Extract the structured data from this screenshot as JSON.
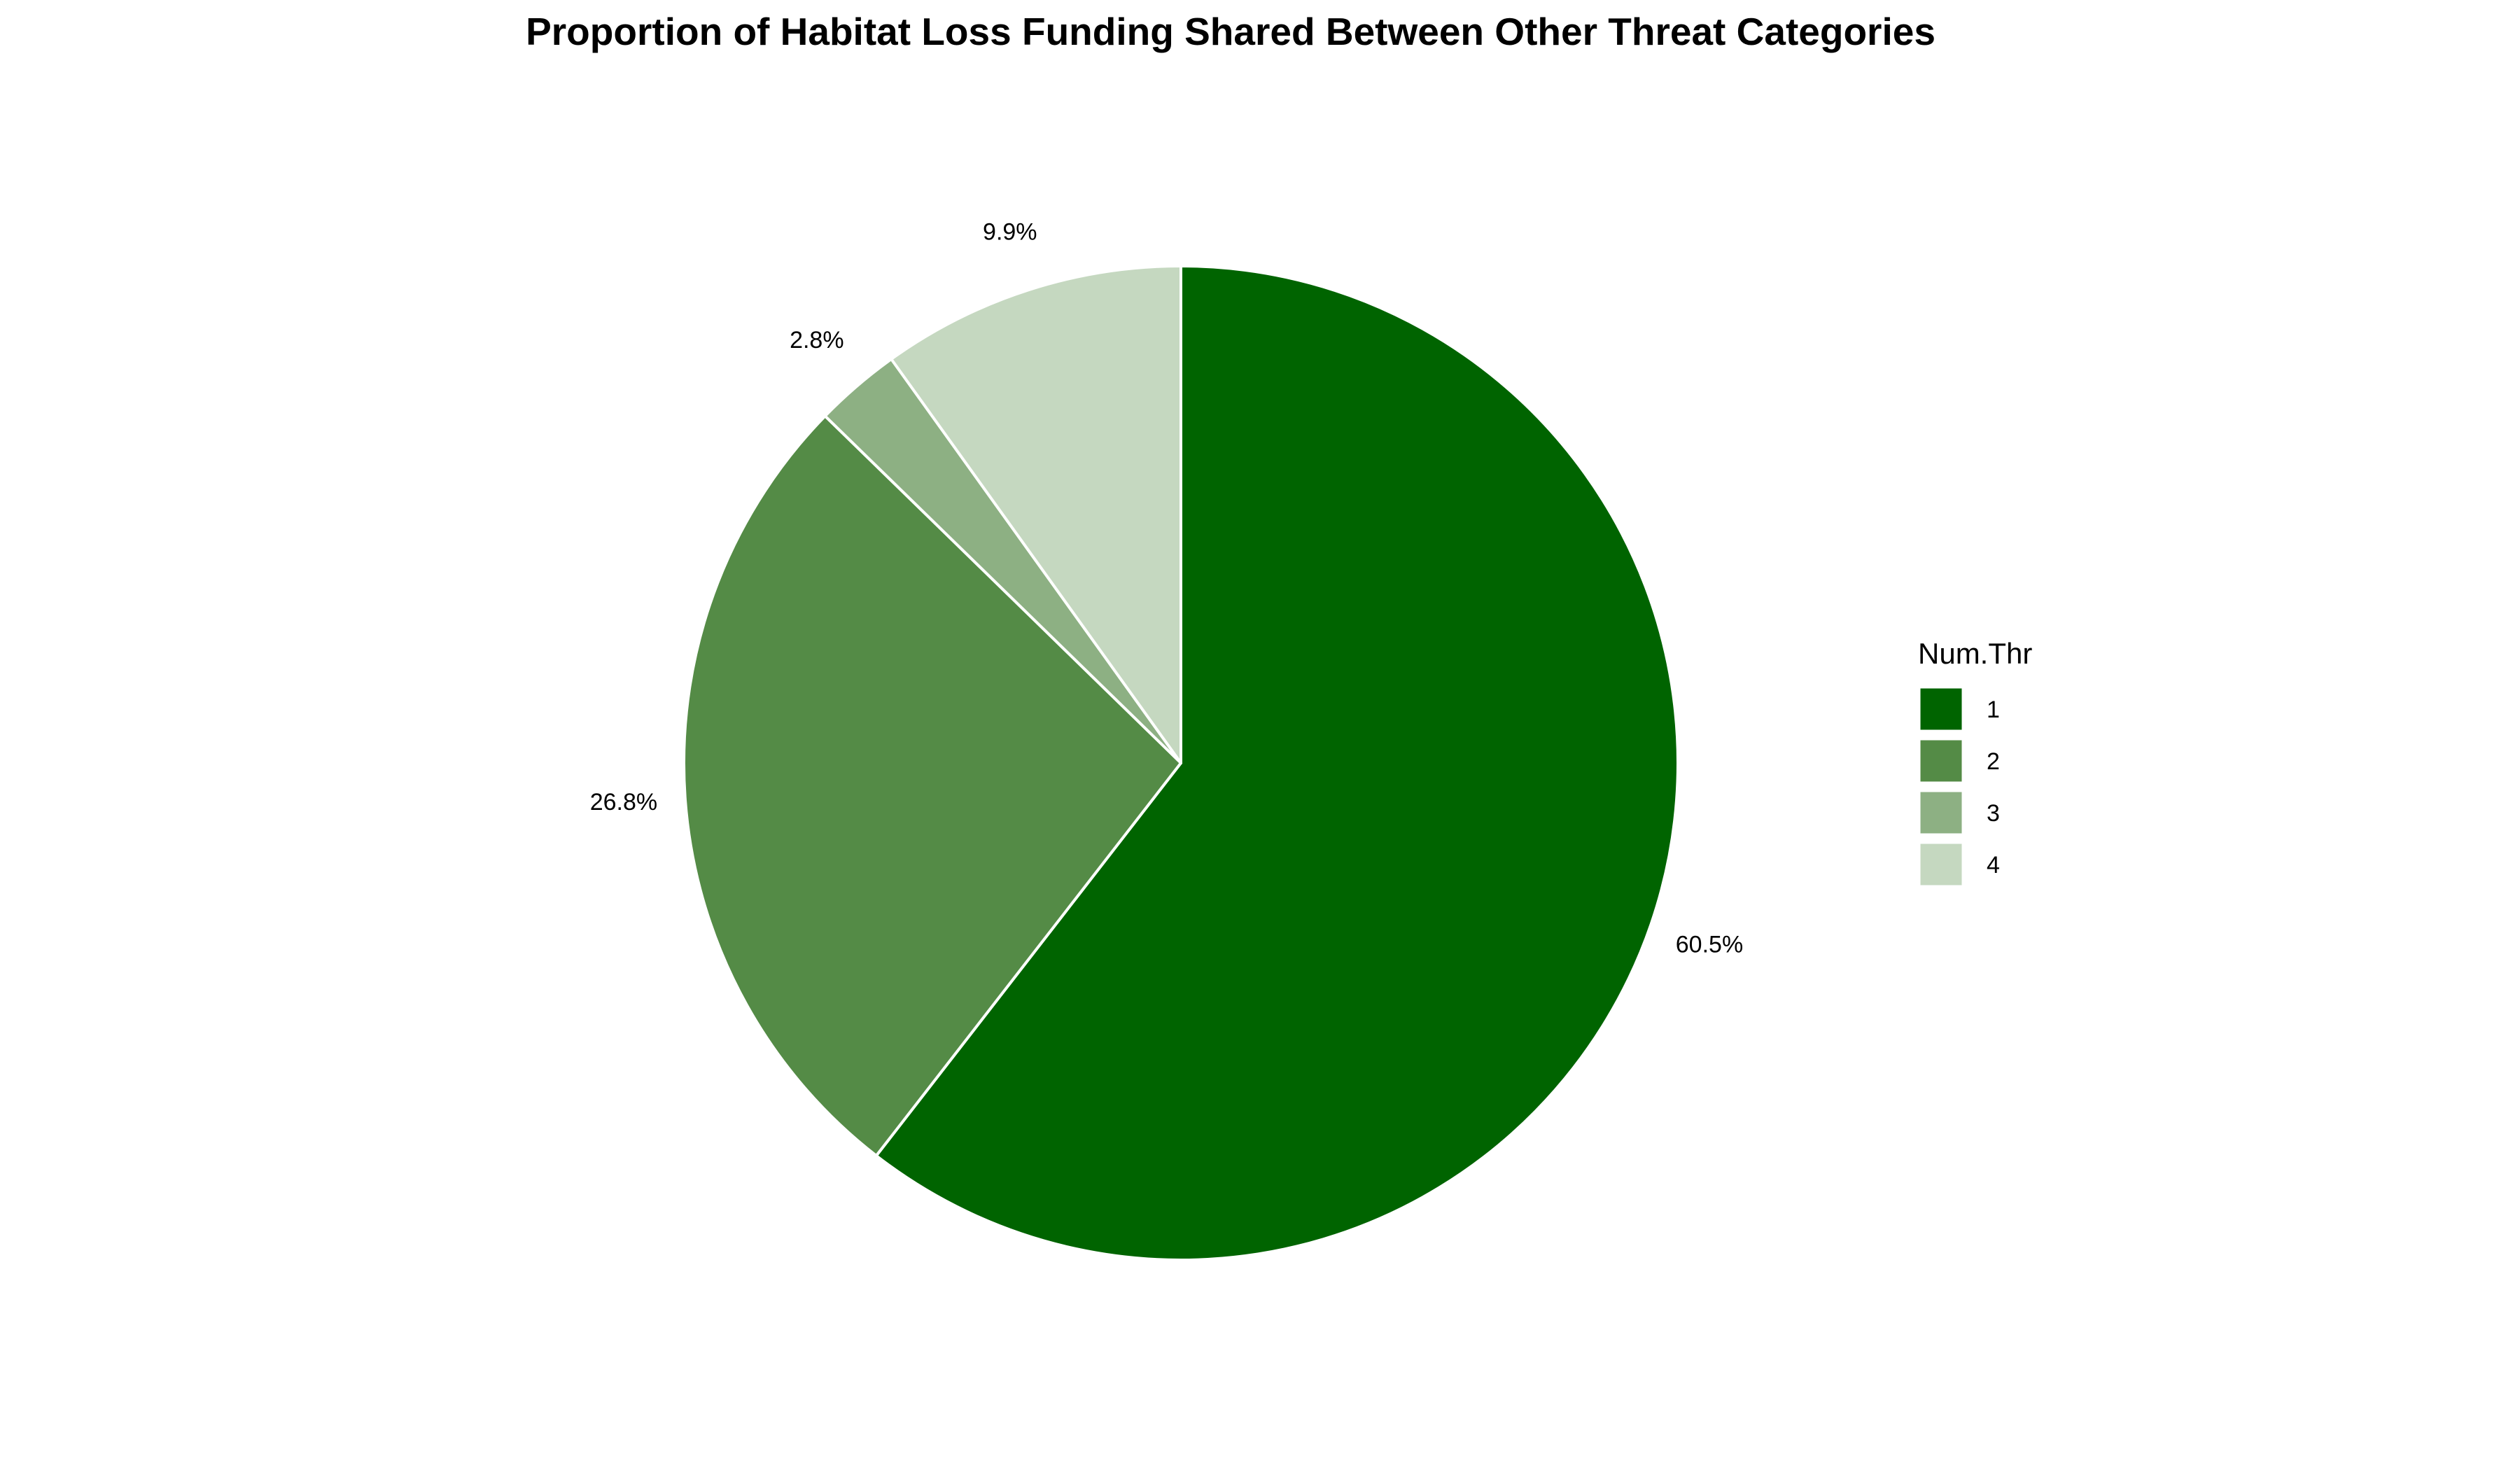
{
  "chart_data": {
    "type": "pie",
    "title": "Proportion of Habitat Loss Funding Shared Between Other Threat Categories",
    "legend": {
      "title": "Num.Thr",
      "position": "right"
    },
    "direction": "clockwise",
    "start": "top",
    "slices": [
      {
        "category": "1",
        "value": 60.5,
        "label": "60.5%",
        "color": "#006400"
      },
      {
        "category": "2",
        "value": 26.8,
        "label": "26.8%",
        "color": "#548B46"
      },
      {
        "category": "3",
        "value": 2.8,
        "label": "2.8%",
        "color": "#8DB083"
      },
      {
        "category": "4",
        "value": 9.9,
        "label": "9.9%",
        "color": "#C5D8C0"
      }
    ],
    "slice_border_color": "#FFFFFF"
  }
}
